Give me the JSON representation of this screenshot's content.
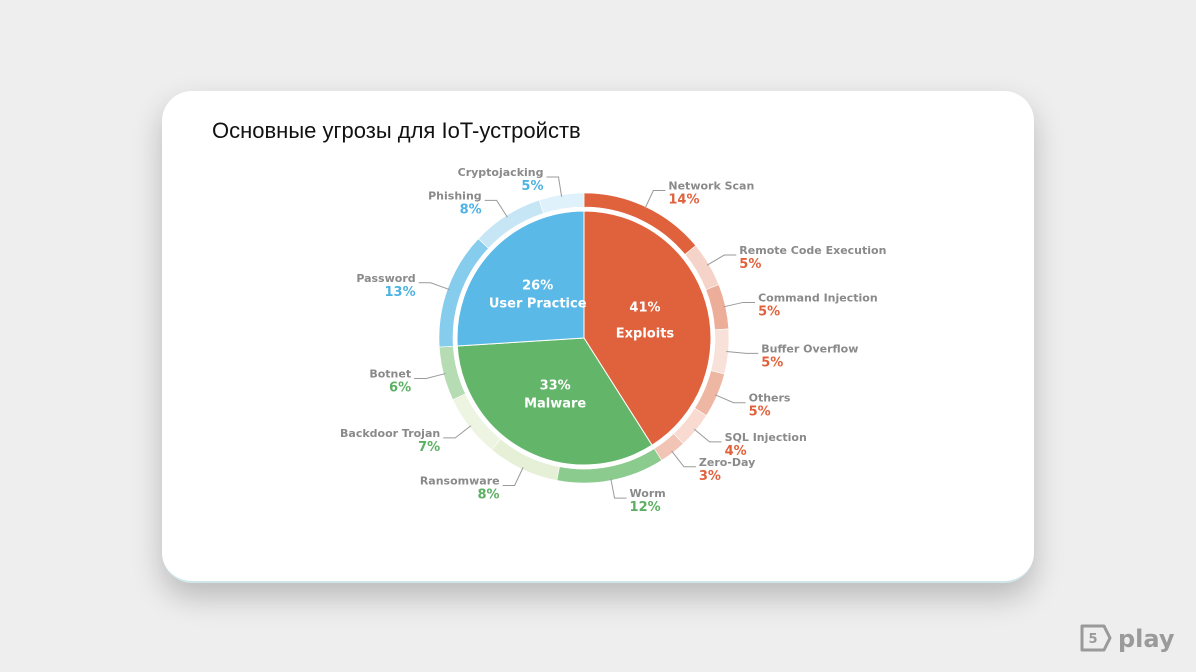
{
  "title": "Основные угрозы для IoT-устройств",
  "brand": {
    "logo_text": "play",
    "logo_mark": "5"
  },
  "colors": {
    "exploits": "#e0623d",
    "user_practice": "#5ab9e6",
    "malware": "#63b56a",
    "label_gray": "#8a8a8a"
  },
  "chart_data": {
    "type": "pie",
    "title": "Основные угрозы для IoT-устройств",
    "inner": [
      {
        "name": "Exploits",
        "value": 41,
        "label": "41%",
        "color": "#e0623d"
      },
      {
        "name": "Malware",
        "value": 33,
        "label": "33%",
        "color": "#63b56a"
      },
      {
        "name": "User Practice",
        "value": 26,
        "label": "26%",
        "color": "#5ab9e6"
      }
    ],
    "outer": [
      {
        "name": "Network Scan",
        "value": 14,
        "label": "14%",
        "group": "Exploits",
        "color": "#e0623d"
      },
      {
        "name": "Remote Code Execution",
        "value": 5,
        "label": "5%",
        "group": "Exploits",
        "color": "#f6d3c8"
      },
      {
        "name": "Command Injection",
        "value": 5,
        "label": "5%",
        "group": "Exploits",
        "color": "#ecae99"
      },
      {
        "name": "Buffer Overflow",
        "value": 5,
        "label": "5%",
        "group": "Exploits",
        "color": "#f8e1d9"
      },
      {
        "name": "Others",
        "value": 5,
        "label": "5%",
        "group": "Exploits",
        "color": "#eeb7a4"
      },
      {
        "name": "SQL Injection",
        "value": 4,
        "label": "4%",
        "group": "Exploits",
        "color": "#f8dad0"
      },
      {
        "name": "Zero-Day",
        "value": 3,
        "label": "3%",
        "group": "Exploits",
        "color": "#f2c4b5"
      },
      {
        "name": "Worm",
        "value": 12,
        "label": "12%",
        "group": "Malware",
        "color": "#8ccb8e"
      },
      {
        "name": "Ransomware",
        "value": 8,
        "label": "8%",
        "group": "Malware",
        "color": "#e6f0d6"
      },
      {
        "name": "Backdoor Trojan",
        "value": 7,
        "label": "7%",
        "group": "Malware",
        "color": "#eef4e2"
      },
      {
        "name": "Botnet",
        "value": 6,
        "label": "6%",
        "group": "Malware",
        "color": "#b6dcb4"
      },
      {
        "name": "Password",
        "value": 13,
        "label": "13%",
        "group": "User Practice",
        "color": "#86ccec"
      },
      {
        "name": "Phishing",
        "value": 8,
        "label": "8%",
        "group": "User Practice",
        "color": "#c6e6f5"
      },
      {
        "name": "Cryptojacking",
        "value": 5,
        "label": "5%",
        "group": "User Practice",
        "color": "#dff1fa"
      }
    ]
  }
}
